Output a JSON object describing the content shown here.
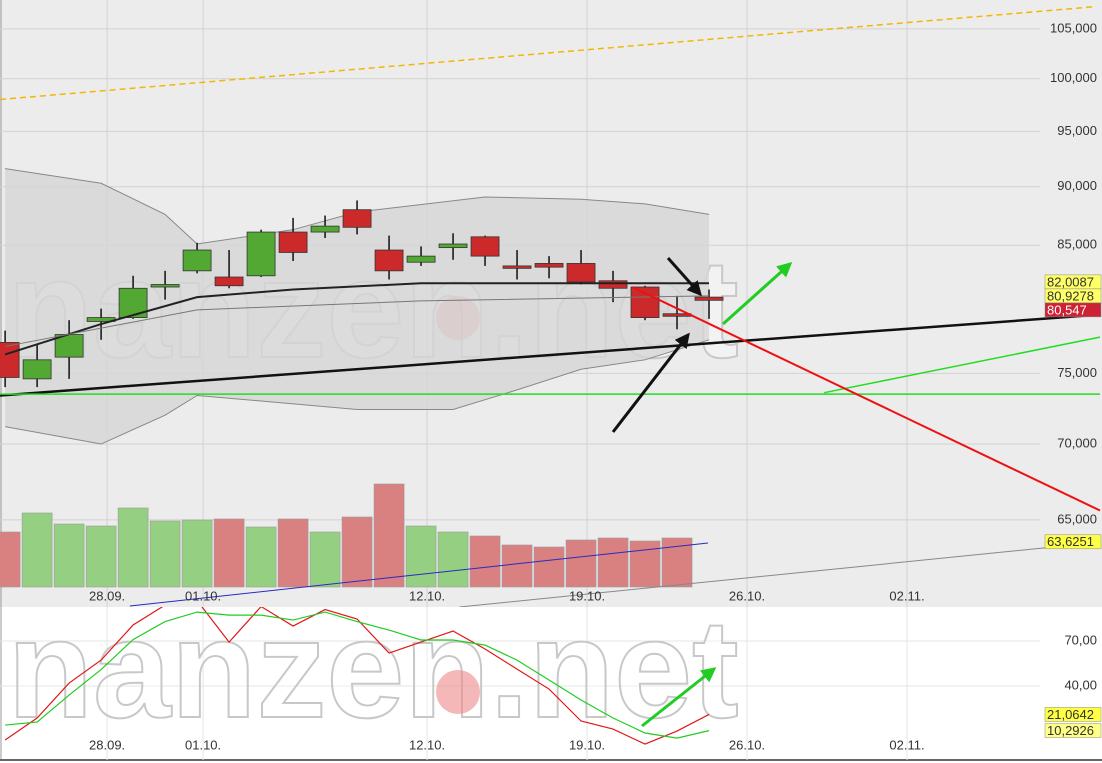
{
  "chart_data": [
    {
      "type": "candlestick",
      "watermark": "finanzen.net",
      "x": [
        0,
        1,
        2,
        3,
        4,
        5,
        6,
        7,
        8,
        9,
        10,
        11,
        12,
        13,
        14,
        15,
        16,
        17,
        18,
        19,
        20,
        21,
        22
      ],
      "open": [
        77.3,
        74.6,
        76.2,
        78.9,
        79.2,
        81.6,
        82.9,
        82.4,
        82.5,
        86.1,
        86.1,
        88.0,
        84.6,
        83.6,
        84.8,
        85.7,
        83.3,
        83.5,
        83.5,
        82.1,
        81.6,
        79.5,
        80.8
      ],
      "high": [
        78.2,
        77.1,
        79.0,
        79.9,
        82.5,
        82.9,
        85.2,
        84.6,
        86.3,
        87.3,
        87.5,
        88.8,
        85.8,
        84.9,
        86.0,
        85.8,
        84.6,
        84.1,
        84.6,
        82.9,
        81.7,
        80.9,
        81.4
      ],
      "low": [
        74.0,
        74.0,
        74.6,
        77.5,
        79.1,
        80.6,
        82.7,
        81.5,
        82.4,
        83.7,
        85.6,
        85.9,
        82.2,
        83.3,
        83.8,
        83.3,
        82.2,
        82.3,
        81.8,
        80.4,
        79.0,
        78.3,
        79.1
      ],
      "close": [
        74.7,
        76.0,
        77.9,
        79.2,
        81.5,
        81.8,
        84.6,
        81.7,
        86.1,
        84.4,
        86.6,
        86.5,
        82.9,
        84.1,
        85.1,
        84.1,
        83.1,
        83.2,
        82.0,
        81.5,
        79.2,
        79.3,
        80.547
      ],
      "up_color": "#52a832",
      "down_color": "#cc2a2a",
      "volume": [
        55,
        74,
        63,
        61,
        79,
        66,
        67,
        68,
        60,
        68,
        55,
        70,
        103,
        61,
        55,
        51,
        42,
        40,
        47,
        49,
        46,
        49,
        null
      ],
      "volume_up_color": "#95cf82",
      "volume_down_color": "#d98080",
      "volume_lines": [
        {
          "x": [
            3.9,
            21.97
          ],
          "values": [
            -19,
            44
          ],
          "color": "#2a2ac0"
        }
      ],
      "bands": {
        "color": "#888888",
        "fill": "#d6d6d6",
        "upper": {
          "x": [
            0,
            3,
            5,
            6,
            9,
            11,
            15,
            18,
            20,
            22
          ],
          "values": [
            91.6,
            90.3,
            87.6,
            85.1,
            86.3,
            87.8,
            89.1,
            88.9,
            88.5,
            87.6
          ]
        },
        "lower": {
          "x": [
            0,
            3,
            5,
            6,
            8,
            11,
            14,
            16,
            18,
            20,
            22
          ],
          "values": [
            71.2,
            70.0,
            72.0,
            73.4,
            73.0,
            72.4,
            72.4,
            73.8,
            75.3,
            76.0,
            77.5
          ]
        }
      },
      "lines": [
        {
          "x": [
            -0.16,
            34.06
          ],
          "values": [
            98.0,
            107.3
          ],
          "color": "#f2b705",
          "dash": true,
          "width": 1.5
        },
        {
          "x": [
            -0.16,
            34.06
          ],
          "values": [
            73.4,
            79.4
          ],
          "color": "#111111",
          "dash": false,
          "width": 2.5
        },
        {
          "x": [
            0,
            3,
            6,
            9,
            13,
            18,
            22
          ],
          "values": [
            76.4,
            78.7,
            80.8,
            81.4,
            81.9,
            81.9,
            81.9
          ],
          "color": "#222222",
          "dash": false,
          "width": 2
        },
        {
          "x": [
            0,
            6,
            13,
            22
          ],
          "values": [
            77.0,
            79.8,
            80.5,
            80.9
          ],
          "color": "#777777",
          "dash": false,
          "width": 1
        },
        {
          "x": [
            14.2,
            34.22
          ],
          "values": [
            59.7,
            63.6
          ],
          "color": "#888888",
          "dash": false,
          "width": 1
        },
        {
          "x": [
            -0.16,
            34.22
          ],
          "values": [
            73.5,
            73.5
          ],
          "color": "#22dd22",
          "dash": false,
          "width": 1.5
        },
        {
          "x": [
            25.6,
            34.22
          ],
          "values": [
            73.6,
            77.7
          ],
          "color": "#22dd22",
          "dash": false,
          "width": 1.5
        },
        {
          "x": [
            19.6,
            34.22
          ],
          "values": [
            81.6,
            65.6
          ],
          "color": "#ee1111",
          "dash": false,
          "width": 2
        }
      ],
      "xlim": [
        -0.16,
        34.22
      ],
      "xticks": [
        {
          "value": 3,
          "label": "28.09."
        },
        {
          "value": 6,
          "label": "01.10."
        },
        {
          "value": 13,
          "label": "12.10."
        },
        {
          "value": 18,
          "label": "19.10."
        },
        {
          "value": 23,
          "label": "26.10."
        },
        {
          "value": 28,
          "label": "02.11."
        }
      ],
      "ylim": [
        59.7,
        108
      ],
      "log_y": true,
      "yticks": [
        {
          "value": 65,
          "label": "65,000"
        },
        {
          "value": 70,
          "label": "70,000"
        },
        {
          "value": 75,
          "label": "75,000"
        },
        {
          "value": 85,
          "label": "85,000"
        },
        {
          "value": 90,
          "label": "90,000"
        },
        {
          "value": 95,
          "label": "95,000"
        },
        {
          "value": 100,
          "label": "100,000"
        },
        {
          "value": 105,
          "label": "105,000"
        }
      ],
      "grid": true,
      "markers": [
        {
          "value": 82.0087,
          "label": "82,0087",
          "color": "#ffff66",
          "text_color": "#333333"
        },
        {
          "value": 80.9278,
          "label": "80,9278",
          "color": "#ffff66",
          "text_color": "#333333"
        },
        {
          "value": 80.547,
          "label": "80,547",
          "color": "#cc2233",
          "text_color": "#ffffff"
        },
        {
          "value": 63.6251,
          "label": "63,6251",
          "color": "#ffff44",
          "text_color": "#333333"
        }
      ]
    },
    {
      "type": "line",
      "watermark": "finanzen.net",
      "x": [
        0,
        1,
        2,
        3,
        4,
        5,
        6,
        7,
        8,
        9,
        10,
        11,
        12,
        13,
        14,
        15,
        16,
        17,
        18,
        19,
        20,
        21,
        22
      ],
      "series": [
        {
          "color": "#e01818",
          "values": [
            4,
            18.7,
            42,
            57.3,
            80.7,
            94,
            97,
            69.3,
            93,
            80,
            91,
            84.7,
            62,
            69.3,
            76.7,
            64.7,
            51.3,
            38,
            16.7,
            11.3,
            1.3,
            10,
            21.0642
          ]
        },
        {
          "color": "#22cc22",
          "values": [
            14,
            16,
            34,
            51,
            71,
            83,
            89.3,
            87.3,
            87.3,
            84,
            89.3,
            83,
            77.3,
            70.7,
            70.7,
            67.3,
            57.3,
            44,
            30.7,
            18.7,
            8.7,
            5.3,
            10.2926
          ]
        }
      ],
      "xlim": [
        -0.16,
        34.22
      ],
      "xticks": [
        {
          "value": 3,
          "label": "28.09."
        },
        {
          "value": 6,
          "label": "01.10."
        },
        {
          "value": 13,
          "label": "12.10."
        },
        {
          "value": 18,
          "label": "19.10."
        },
        {
          "value": 23,
          "label": "26.10."
        },
        {
          "value": 28,
          "label": "02.11."
        }
      ],
      "ylim": [
        -9.3,
        92.7
      ],
      "yticks": [
        {
          "value": 40,
          "label": "40,00"
        },
        {
          "value": 70,
          "label": "70,00"
        }
      ],
      "grid": true,
      "markers": [
        {
          "value": 21.0642,
          "label": "21,0642",
          "color": "#ffff44",
          "text_color": "#333333"
        },
        {
          "value": 10.2926,
          "label": "10,2926",
          "color": "#ffff88",
          "text_color": "#333333"
        }
      ]
    }
  ]
}
